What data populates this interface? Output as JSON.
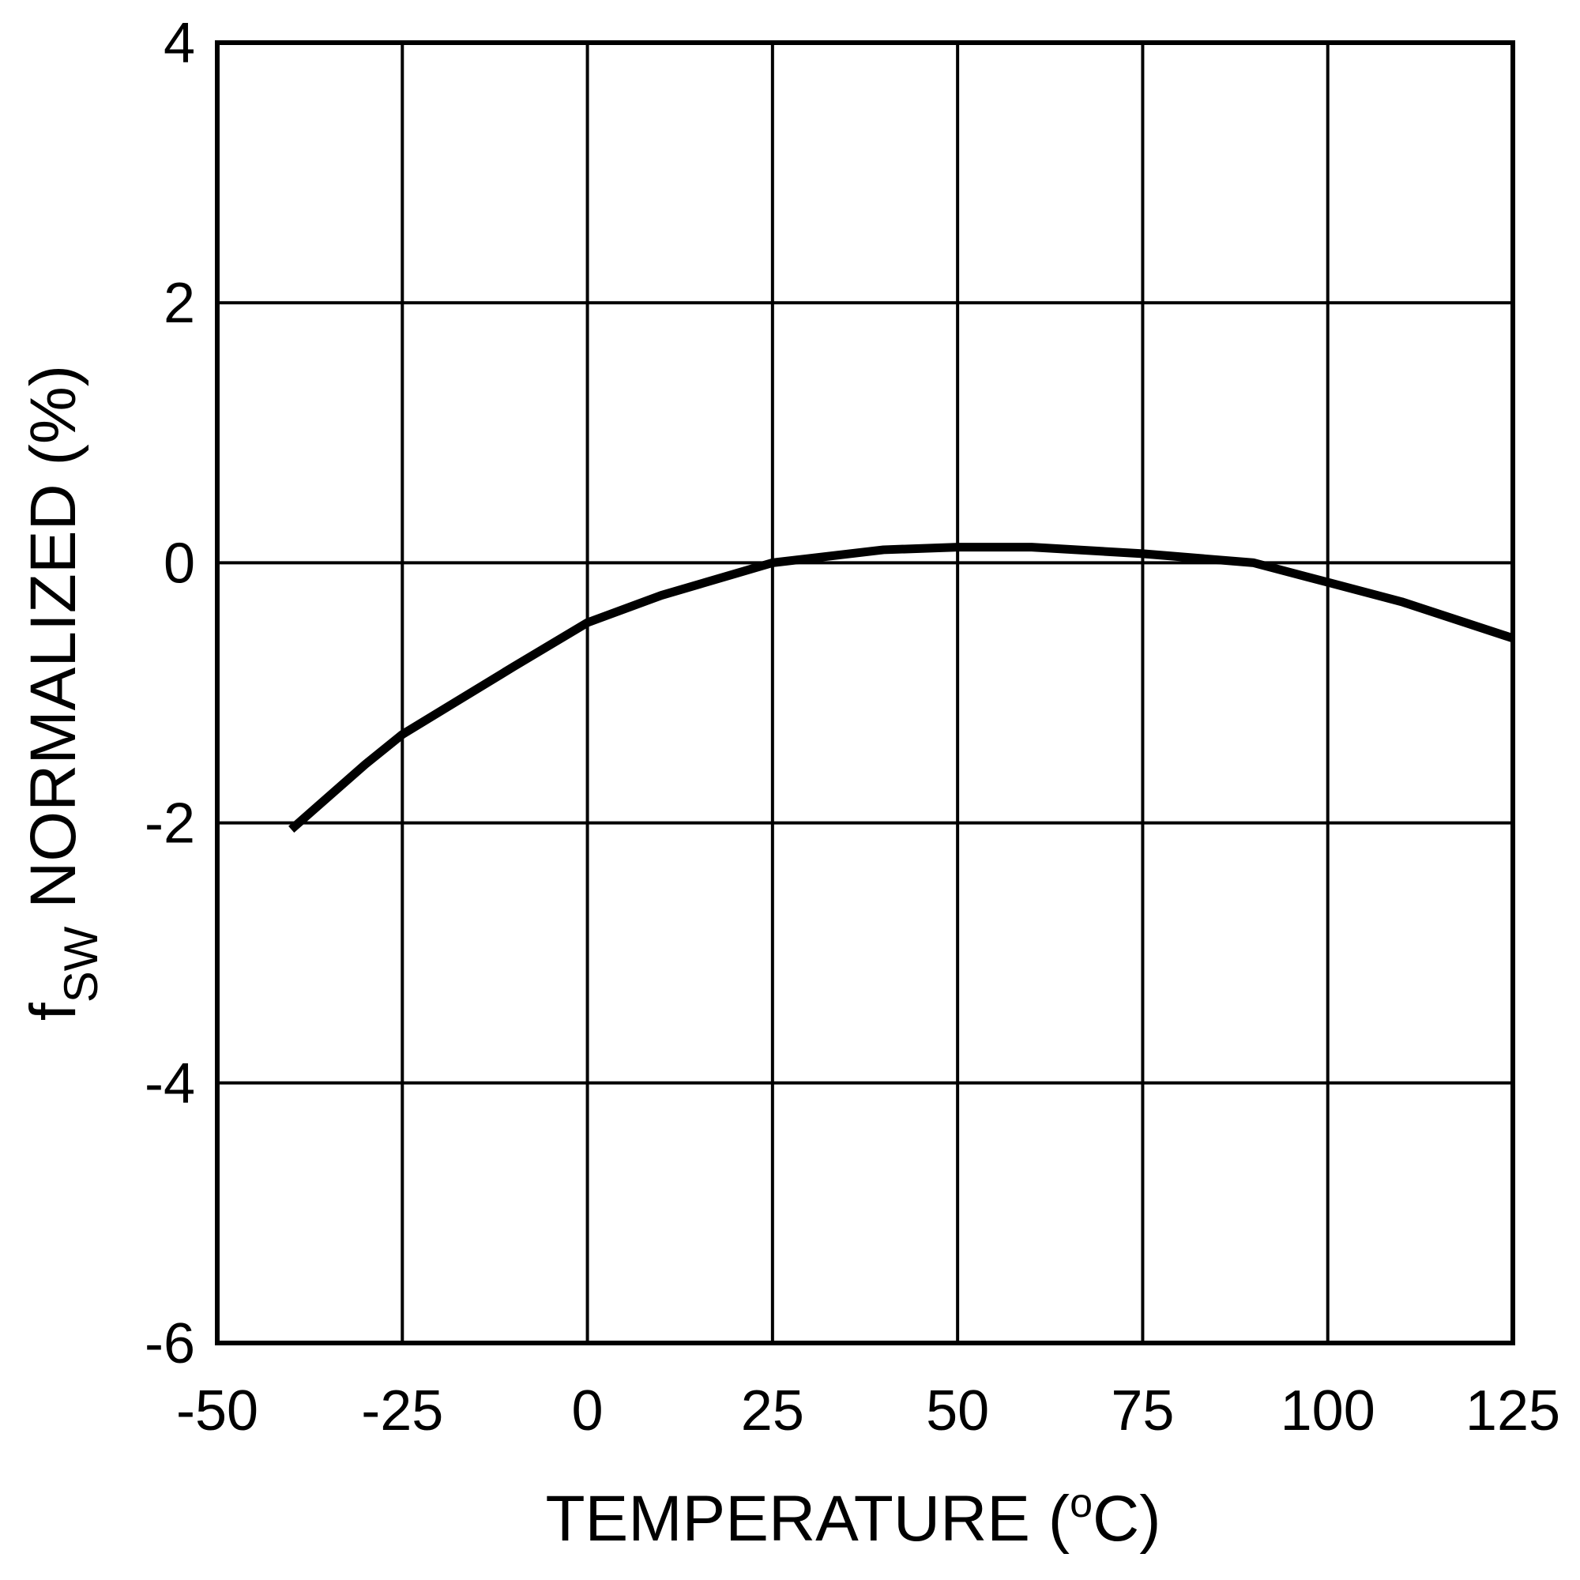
{
  "chart_data": {
    "type": "line",
    "x_label": {
      "main": "TEMPERATURE (",
      "sup": "o",
      "rest": "C)"
    },
    "y_label": {
      "main": "f",
      "sub": "SW",
      "rest": " NORMALIZED (%)"
    },
    "x": [
      -40,
      -30,
      -25,
      -10,
      0,
      10,
      25,
      40,
      50,
      60,
      75,
      90,
      100,
      110,
      125
    ],
    "series": [
      {
        "color": "#000000",
        "values": [
          -2.05,
          -1.55,
          -1.32,
          -0.8,
          -0.46,
          -0.25,
          0,
          0.1,
          0.12,
          0.12,
          0.07,
          0,
          -0.15,
          -0.3,
          -0.58
        ]
      }
    ],
    "xlim": [
      -50,
      125
    ],
    "xticks": [
      -50,
      -25,
      0,
      25,
      50,
      75,
      100,
      125
    ],
    "ylim": [
      -6,
      4
    ],
    "yticks": [
      -6,
      -4,
      -2,
      0,
      2,
      4
    ],
    "grid": true
  }
}
